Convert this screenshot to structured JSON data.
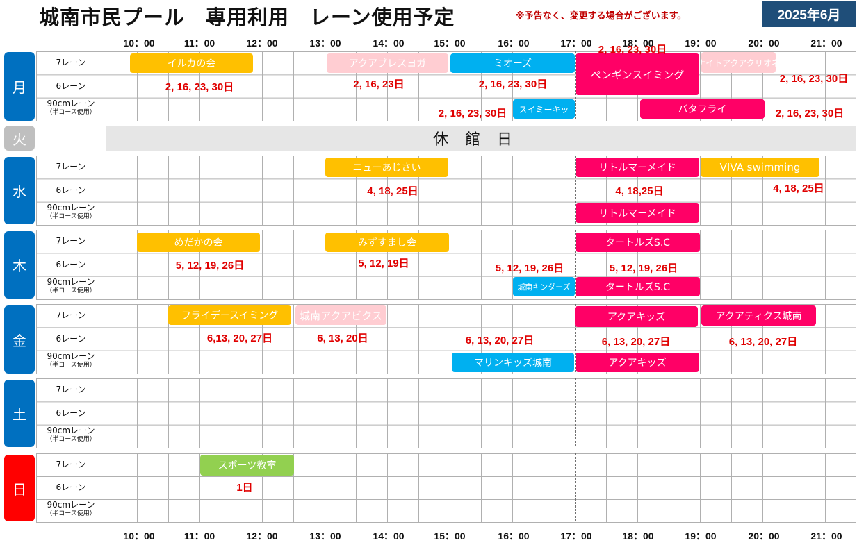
{
  "header": {
    "title": "城南市民プール　専用利用　レーン使用予定",
    "notice": "※予告なく、変更する場合がございます。",
    "month": "2025年6月"
  },
  "time_labels": [
    "10：00",
    "11：00",
    "12：00",
    "13：00",
    "14：00",
    "15：00",
    "16：00",
    "17：00",
    "18：00",
    "19：00",
    "20：00",
    "21：00"
  ],
  "lanes": {
    "lane7": "7レーン",
    "lane6": "6レーン",
    "lane90": "90cmレーン",
    "lane90_sub": "（半コース使用）"
  },
  "days": {
    "mon": "月",
    "tue": "火",
    "wed": "水",
    "thu": "木",
    "fri": "金",
    "sat": "土",
    "sun": "日"
  },
  "closed_label": "休館日",
  "colors": {
    "yellow": "#ffc000",
    "pink_light": "#ffcdd2",
    "blue": "#00b0f0",
    "magenta": "#ff0066",
    "green": "#92d050",
    "day_blue": "#0070c0",
    "day_gray": "#bfbfbf",
    "day_red": "#ff0000",
    "date_red": "#e00000"
  },
  "events": {
    "mon": [
      {
        "name": "イルカの会",
        "color": "yellow"
      },
      {
        "name": "アクアブレスヨガ",
        "color": "pink_light"
      },
      {
        "name": "ミオーズ",
        "color": "blue"
      },
      {
        "name": "ペンギンスイミング",
        "color": "magenta"
      },
      {
        "name": "ナイトアクアクリオネ",
        "color": "pink_light"
      },
      {
        "name": "スイミーキッ",
        "color": "blue"
      },
      {
        "name": "バタフライ",
        "color": "magenta"
      }
    ],
    "wed": [
      {
        "name": "ニューあじさい",
        "color": "yellow"
      },
      {
        "name": "リトルマーメイド",
        "color": "magenta"
      },
      {
        "name": "VIVA swimming",
        "color": "yellow"
      },
      {
        "name": "リトルマーメイド",
        "color": "magenta"
      }
    ],
    "thu": [
      {
        "name": "めだかの会",
        "color": "yellow"
      },
      {
        "name": "みずすまし会",
        "color": "yellow"
      },
      {
        "name": "タートルズS.C",
        "color": "magenta"
      },
      {
        "name": "城南キンダーズ",
        "color": "blue"
      },
      {
        "name": "タートルズS.C",
        "color": "magenta"
      }
    ],
    "fri": [
      {
        "name": "フライデースイミング",
        "color": "yellow"
      },
      {
        "name": "城南アクアビクス",
        "color": "pink_light"
      },
      {
        "name": "アクアキッズ",
        "color": "magenta"
      },
      {
        "name": "アクアティクス城南",
        "color": "magenta"
      },
      {
        "name": "マリンキッズ城南",
        "color": "blue"
      },
      {
        "name": "アクアキッズ",
        "color": "magenta"
      }
    ],
    "sun": [
      {
        "name": "スポーツ教室",
        "color": "green"
      }
    ]
  },
  "date_notes": {
    "mon": [
      "2, 16, 23, 30日",
      "2, 16, 23日",
      "2, 16, 23, 30日",
      "2, 16, 23, 30日",
      "2, 16, 23, 30日",
      "2, 16, 23, 30日",
      "2, 16, 23, 30日"
    ],
    "wed": [
      "4, 18, 25日",
      "4, 18,25日",
      "4, 18, 25日"
    ],
    "thu": [
      "5, 12, 19, 26日",
      "5, 12, 19日",
      "5, 12, 19, 26日",
      "5, 12, 19, 26日"
    ],
    "fri": [
      "6,13, 20, 27日",
      "6, 13, 20日",
      "6, 13, 20, 27日",
      "6, 13, 20, 27日",
      "6, 13, 20, 27日"
    ],
    "sun": [
      "1日"
    ]
  }
}
